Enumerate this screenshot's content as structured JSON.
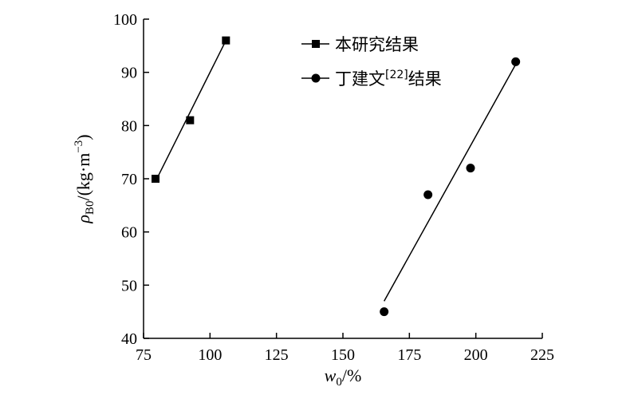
{
  "chart_data": {
    "type": "scatter",
    "xlabel": {
      "var": "w",
      "sub": "0",
      "unit": "/%"
    },
    "ylabel": {
      "var": "ρ",
      "sub": "B0",
      "unit_pre": "/(kg·m",
      "unit_sup": "−3",
      "unit_post": ")"
    },
    "xlim": [
      75,
      225
    ],
    "ylim": [
      40,
      100
    ],
    "xticks": [
      75,
      100,
      125,
      150,
      175,
      200,
      225
    ],
    "yticks": [
      40,
      50,
      60,
      70,
      80,
      90,
      100
    ],
    "grid": false,
    "legend_position": "top-center",
    "series": [
      {
        "name": "本研究结果",
        "marker": "square",
        "points": [
          {
            "x": 79.5,
            "y": 70
          },
          {
            "x": 92.5,
            "y": 81
          },
          {
            "x": 106,
            "y": 96
          }
        ],
        "fit_line": [
          {
            "x": 79.5,
            "y": 69.5
          },
          {
            "x": 106,
            "y": 96
          }
        ]
      },
      {
        "name": "丁建文",
        "name_ref": "[22]",
        "name_suffix": "结果",
        "marker": "circle",
        "points": [
          {
            "x": 165.5,
            "y": 45
          },
          {
            "x": 182,
            "y": 67
          },
          {
            "x": 198,
            "y": 72
          },
          {
            "x": 215,
            "y": 92
          }
        ],
        "fit_line": [
          {
            "x": 165.5,
            "y": 47
          },
          {
            "x": 215,
            "y": 91.5
          }
        ]
      }
    ]
  }
}
